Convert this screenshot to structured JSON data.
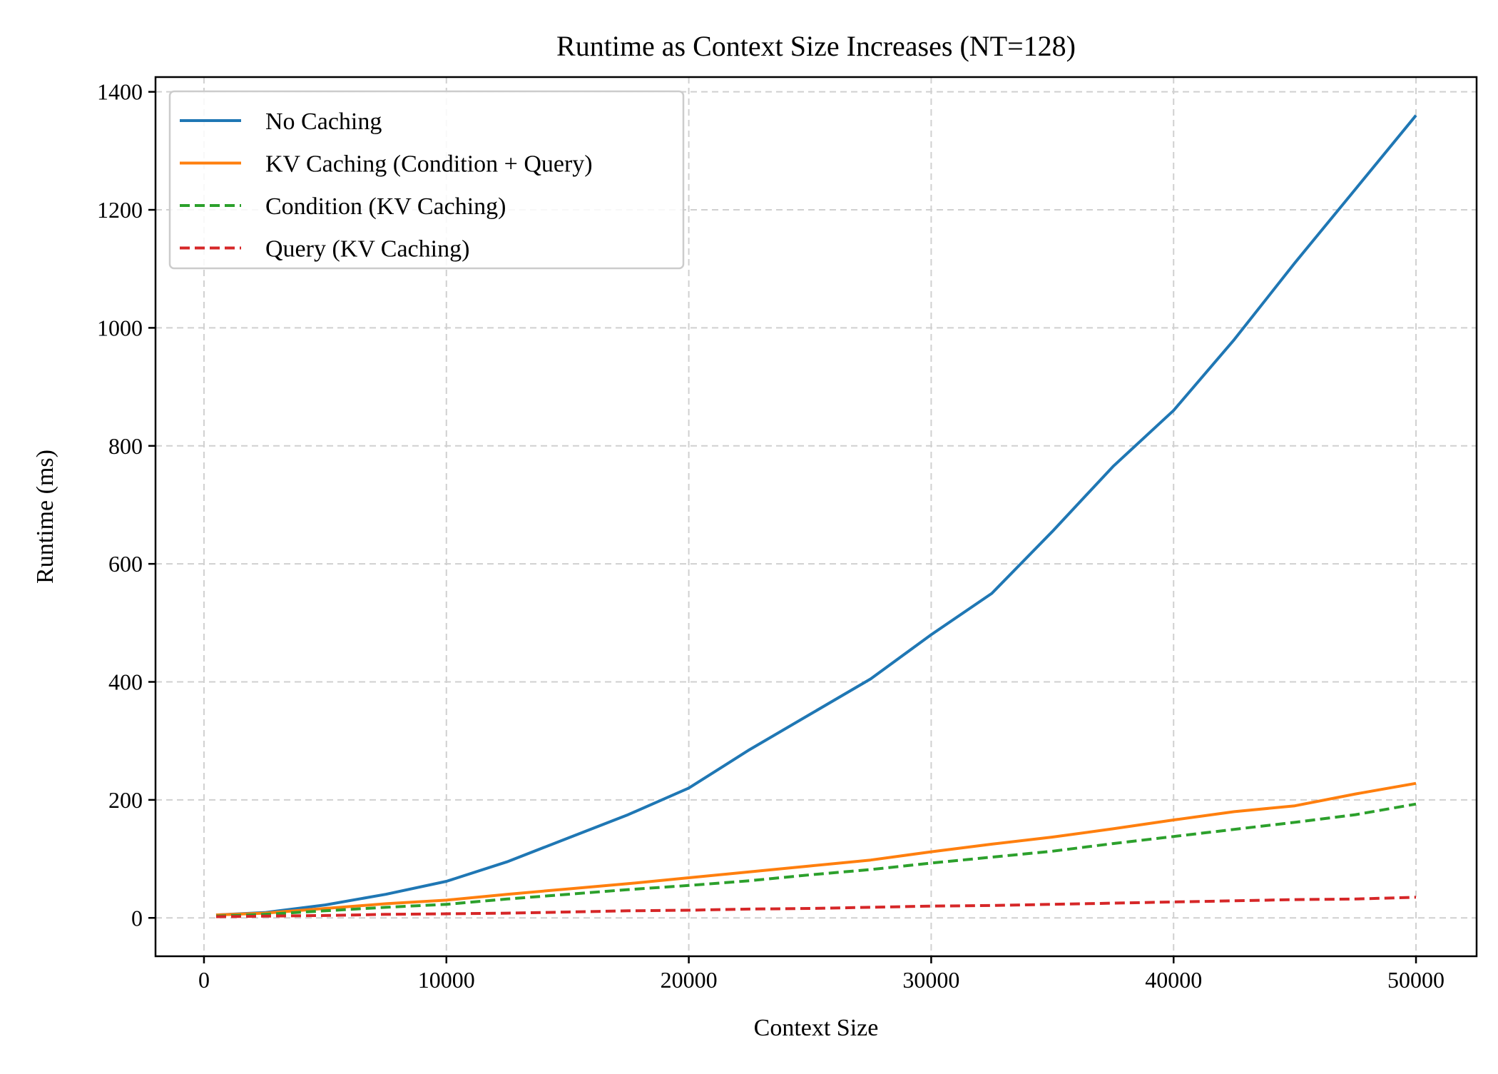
{
  "chart_data": {
    "type": "line",
    "title": "Runtime as Context Size Increases (NT=128)",
    "xlabel": "Context Size",
    "ylabel": "Runtime (ms)",
    "xlim": [
      -2000,
      52500
    ],
    "ylim": [
      -65,
      1425
    ],
    "xticks": [
      0,
      10000,
      20000,
      30000,
      40000,
      50000
    ],
    "yticks": [
      0,
      200,
      400,
      600,
      800,
      1000,
      1200,
      1400
    ],
    "grid": true,
    "legend_position": "upper-left",
    "x": [
      500,
      2500,
      5000,
      7500,
      10000,
      12500,
      15000,
      17500,
      20000,
      22500,
      25000,
      27500,
      30000,
      32500,
      35000,
      37500,
      40000,
      42500,
      45000,
      47500,
      50000
    ],
    "series": [
      {
        "name": "No Caching",
        "color": "#1f77b4",
        "style": "solid",
        "values": [
          5,
          9,
          22,
          40,
          62,
          95,
          135,
          175,
          220,
          285,
          345,
          405,
          480,
          550,
          655,
          765,
          860,
          980,
          1110,
          1235,
          1360
        ]
      },
      {
        "name": "KV Caching (Condition + Query)",
        "color": "#ff7f0e",
        "style": "solid",
        "values": [
          5,
          8,
          16,
          24,
          30,
          40,
          49,
          58,
          68,
          78,
          88,
          98,
          112,
          125,
          137,
          151,
          166,
          180,
          190,
          210,
          228
        ]
      },
      {
        "name": "Condition (KV Caching)",
        "color": "#2ca02c",
        "style": "dashed",
        "values": [
          3,
          6,
          12,
          18,
          23,
          32,
          40,
          48,
          55,
          63,
          73,
          82,
          93,
          103,
          113,
          126,
          138,
          150,
          162,
          175,
          193
        ]
      },
      {
        "name": "Query (KV Caching)",
        "color": "#d62728",
        "style": "dashed",
        "values": [
          2,
          3,
          4,
          6,
          7,
          8,
          10,
          12,
          13,
          15,
          16,
          18,
          20,
          21,
          23,
          25,
          27,
          29,
          31,
          32,
          35
        ]
      }
    ]
  }
}
